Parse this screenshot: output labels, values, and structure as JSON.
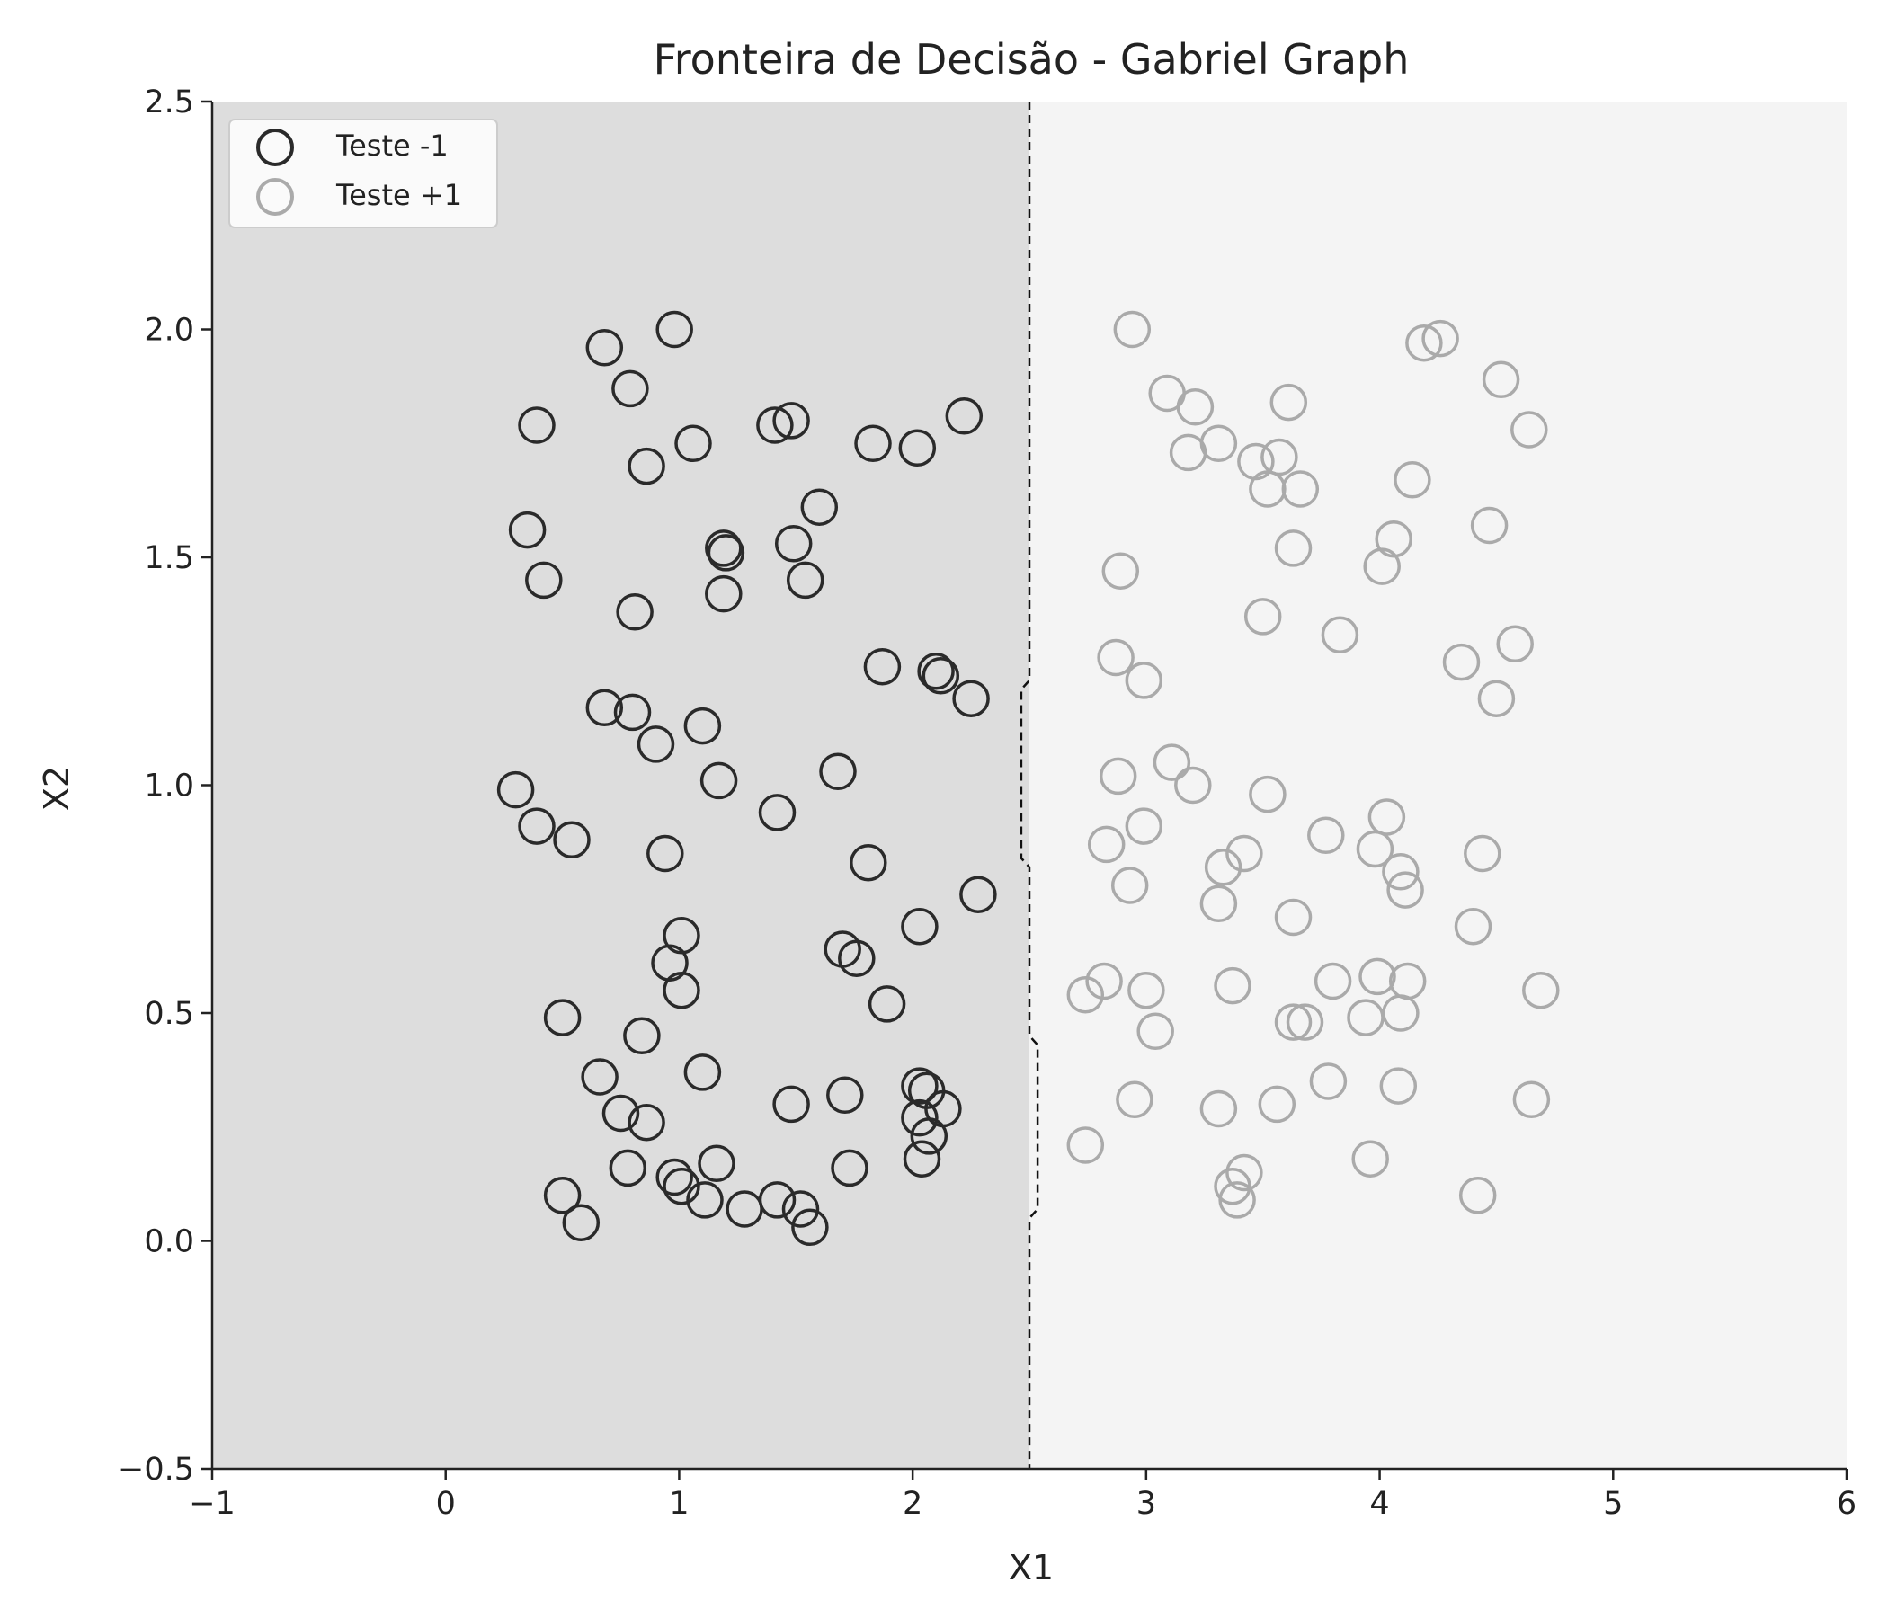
{
  "chart_data": {
    "type": "scatter",
    "title": "Fronteira de Decisão - Gabriel Graph",
    "xlabel": "X1",
    "ylabel": "X2",
    "xlim": [
      -1,
      6
    ],
    "ylim": [
      -0.5,
      2.5
    ],
    "xticks": [
      -1,
      0,
      1,
      2,
      3,
      4,
      5,
      6
    ],
    "xtick_labels": [
      "−1",
      "0",
      "1",
      "2",
      "3",
      "4",
      "5",
      "6"
    ],
    "yticks": [
      -0.5,
      0.0,
      0.5,
      1.0,
      1.5,
      2.0,
      2.5
    ],
    "ytick_labels": [
      "−0.5",
      "0.0",
      "0.5",
      "1.0",
      "1.5",
      "2.0",
      "2.5"
    ],
    "grid": false,
    "legend": {
      "position": "top-left",
      "entries": [
        "Teste -1",
        "Teste +1"
      ]
    },
    "regions": [
      {
        "class": "-1",
        "side": "left",
        "color": "#dddddd"
      },
      {
        "class": "+1",
        "side": "right",
        "color": "#f4f4f4"
      }
    ],
    "boundary": {
      "style": "dashed",
      "color": "#111111",
      "points": [
        [
          2.5,
          2.5
        ],
        [
          2.5,
          1.23
        ],
        [
          2.465,
          1.21
        ],
        [
          2.465,
          0.84
        ],
        [
          2.5,
          0.82
        ],
        [
          2.5,
          0.45
        ],
        [
          2.535,
          0.43
        ],
        [
          2.535,
          0.07
        ],
        [
          2.5,
          0.05
        ],
        [
          2.5,
          -0.5
        ]
      ]
    },
    "series": [
      {
        "name": "Teste -1",
        "color": "#2a2a2a",
        "marker": "open-circle",
        "points": [
          [
            0.98,
            2.0
          ],
          [
            0.68,
            1.96
          ],
          [
            0.79,
            1.87
          ],
          [
            0.39,
            1.79
          ],
          [
            1.06,
            1.75
          ],
          [
            0.86,
            1.7
          ],
          [
            1.41,
            1.79
          ],
          [
            1.48,
            1.8
          ],
          [
            1.83,
            1.75
          ],
          [
            2.02,
            1.74
          ],
          [
            2.22,
            1.81
          ],
          [
            1.6,
            1.61
          ],
          [
            0.35,
            1.56
          ],
          [
            0.42,
            1.45
          ],
          [
            1.19,
            1.52
          ],
          [
            1.2,
            1.51
          ],
          [
            1.19,
            1.42
          ],
          [
            1.49,
            1.53
          ],
          [
            1.54,
            1.45
          ],
          [
            0.81,
            1.38
          ],
          [
            1.87,
            1.26
          ],
          [
            2.1,
            1.25
          ],
          [
            2.12,
            1.24
          ],
          [
            2.25,
            1.19
          ],
          [
            0.68,
            1.17
          ],
          [
            0.8,
            1.16
          ],
          [
            0.9,
            1.09
          ],
          [
            1.1,
            1.13
          ],
          [
            0.3,
            0.99
          ],
          [
            0.39,
            0.91
          ],
          [
            0.54,
            0.88
          ],
          [
            1.17,
            1.01
          ],
          [
            1.68,
            1.03
          ],
          [
            1.42,
            0.94
          ],
          [
            0.94,
            0.85
          ],
          [
            1.81,
            0.83
          ],
          [
            2.28,
            0.76
          ],
          [
            1.01,
            0.67
          ],
          [
            0.96,
            0.61
          ],
          [
            1.01,
            0.55
          ],
          [
            1.7,
            0.64
          ],
          [
            1.76,
            0.62
          ],
          [
            2.03,
            0.69
          ],
          [
            1.89,
            0.52
          ],
          [
            0.5,
            0.49
          ],
          [
            0.84,
            0.45
          ],
          [
            0.66,
            0.36
          ],
          [
            1.1,
            0.37
          ],
          [
            0.75,
            0.28
          ],
          [
            0.86,
            0.26
          ],
          [
            1.48,
            0.3
          ],
          [
            1.71,
            0.32
          ],
          [
            2.03,
            0.34
          ],
          [
            2.06,
            0.33
          ],
          [
            2.13,
            0.29
          ],
          [
            2.03,
            0.27
          ],
          [
            2.07,
            0.23
          ],
          [
            2.04,
            0.18
          ],
          [
            0.78,
            0.16
          ],
          [
            1.16,
            0.17
          ],
          [
            1.73,
            0.16
          ],
          [
            0.98,
            0.14
          ],
          [
            1.01,
            0.12
          ],
          [
            1.11,
            0.09
          ],
          [
            1.28,
            0.07
          ],
          [
            1.42,
            0.09
          ],
          [
            1.52,
            0.07
          ],
          [
            1.56,
            0.03
          ],
          [
            0.5,
            0.1
          ],
          [
            0.58,
            0.04
          ]
        ]
      },
      {
        "name": "Teste +1",
        "color": "#aaaaaa",
        "marker": "open-circle",
        "points": [
          [
            2.94,
            2.0
          ],
          [
            4.19,
            1.97
          ],
          [
            4.26,
            1.98
          ],
          [
            4.52,
            1.89
          ],
          [
            3.09,
            1.86
          ],
          [
            3.21,
            1.83
          ],
          [
            3.61,
            1.84
          ],
          [
            4.64,
            1.78
          ],
          [
            3.18,
            1.73
          ],
          [
            3.31,
            1.75
          ],
          [
            3.47,
            1.71
          ],
          [
            3.57,
            1.72
          ],
          [
            3.52,
            1.65
          ],
          [
            3.66,
            1.65
          ],
          [
            4.14,
            1.67
          ],
          [
            4.47,
            1.57
          ],
          [
            4.06,
            1.54
          ],
          [
            4.01,
            1.48
          ],
          [
            3.63,
            1.52
          ],
          [
            2.89,
            1.47
          ],
          [
            3.5,
            1.37
          ],
          [
            3.83,
            1.33
          ],
          [
            4.58,
            1.31
          ],
          [
            2.87,
            1.28
          ],
          [
            2.99,
            1.23
          ],
          [
            4.35,
            1.27
          ],
          [
            4.5,
            1.19
          ],
          [
            3.11,
            1.05
          ],
          [
            2.88,
            1.02
          ],
          [
            3.2,
            1.0
          ],
          [
            3.52,
            0.98
          ],
          [
            2.99,
            0.91
          ],
          [
            2.83,
            0.87
          ],
          [
            3.42,
            0.85
          ],
          [
            3.33,
            0.82
          ],
          [
            3.77,
            0.89
          ],
          [
            4.03,
            0.93
          ],
          [
            3.98,
            0.86
          ],
          [
            4.09,
            0.81
          ],
          [
            4.11,
            0.77
          ],
          [
            4.44,
            0.85
          ],
          [
            2.93,
            0.78
          ],
          [
            3.31,
            0.74
          ],
          [
            3.63,
            0.71
          ],
          [
            4.4,
            0.69
          ],
          [
            2.74,
            0.54
          ],
          [
            2.82,
            0.57
          ],
          [
            3.0,
            0.55
          ],
          [
            3.04,
            0.46
          ],
          [
            3.37,
            0.56
          ],
          [
            3.8,
            0.57
          ],
          [
            3.99,
            0.58
          ],
          [
            4.12,
            0.57
          ],
          [
            4.69,
            0.55
          ],
          [
            3.63,
            0.48
          ],
          [
            3.68,
            0.48
          ],
          [
            3.94,
            0.49
          ],
          [
            4.09,
            0.5
          ],
          [
            2.95,
            0.31
          ],
          [
            3.31,
            0.29
          ],
          [
            3.56,
            0.3
          ],
          [
            3.78,
            0.35
          ],
          [
            4.08,
            0.34
          ],
          [
            4.65,
            0.31
          ],
          [
            2.74,
            0.21
          ],
          [
            3.42,
            0.15
          ],
          [
            3.37,
            0.12
          ],
          [
            3.39,
            0.09
          ],
          [
            3.96,
            0.18
          ],
          [
            4.42,
            0.1
          ]
        ]
      }
    ]
  }
}
